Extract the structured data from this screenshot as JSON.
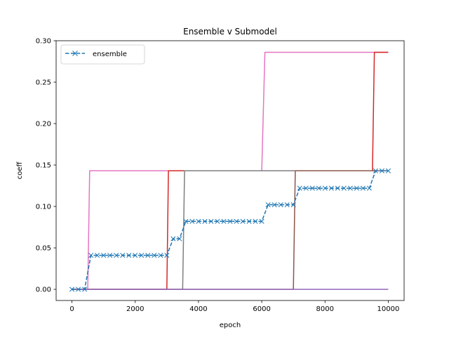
{
  "chart_data": {
    "type": "line",
    "title": "Ensemble v Submodel",
    "xlabel": "epoch",
    "ylabel": "coeff",
    "xlim": [
      -500,
      10500
    ],
    "ylim": [
      -0.0135,
      0.3
    ],
    "xticks": [
      0,
      2000,
      4000,
      6000,
      8000,
      10000
    ],
    "xtick_labels": [
      "0",
      "2000",
      "4000",
      "6000",
      "8000",
      "10000"
    ],
    "yticks": [
      0.0,
      0.05,
      0.1,
      0.15,
      0.2,
      0.25,
      0.3
    ],
    "ytick_labels": [
      "0.00",
      "0.05",
      "0.10",
      "0.15",
      "0.20",
      "0.25",
      "0.30"
    ],
    "grid": false,
    "legend": {
      "position": "top-left",
      "entries": [
        "ensemble"
      ]
    },
    "series": [
      {
        "name": "ensemble",
        "color": "#1f77b4",
        "style": "dashed",
        "marker": "x",
        "x": [
          0,
          200,
          400,
          600,
          800,
          1000,
          1200,
          1400,
          1600,
          1800,
          2000,
          2200,
          2400,
          2600,
          2800,
          3000,
          3200,
          3400,
          3600,
          3800,
          4000,
          4200,
          4400,
          4600,
          4800,
          5000,
          5200,
          5400,
          5600,
          5800,
          6000,
          6200,
          6400,
          6600,
          6800,
          7000,
          7200,
          7400,
          7600,
          7800,
          8000,
          8200,
          8400,
          8600,
          8800,
          9000,
          9200,
          9400,
          9600,
          9800,
          10000
        ],
        "y": [
          0,
          0,
          0,
          0.041,
          0.041,
          0.041,
          0.041,
          0.041,
          0.041,
          0.041,
          0.041,
          0.041,
          0.041,
          0.041,
          0.041,
          0.041,
          0.061,
          0.061,
          0.082,
          0.082,
          0.082,
          0.082,
          0.082,
          0.082,
          0.082,
          0.082,
          0.082,
          0.082,
          0.082,
          0.082,
          0.082,
          0.102,
          0.102,
          0.102,
          0.102,
          0.102,
          0.122,
          0.122,
          0.122,
          0.122,
          0.122,
          0.122,
          0.122,
          0.122,
          0.122,
          0.122,
          0.122,
          0.122,
          0.143,
          0.143,
          0.143
        ]
      },
      {
        "color": "#e377c2",
        "x": [
          0,
          500,
          560,
          6000,
          6100,
          10000
        ],
        "y": [
          0,
          0,
          0.143,
          0.143,
          0.286,
          0.286
        ]
      },
      {
        "color": "#d62728",
        "x": [
          0,
          3000,
          3050,
          9500,
          9560,
          10000
        ],
        "y": [
          0,
          0,
          0.143,
          0.143,
          0.286,
          0.286
        ]
      },
      {
        "color": "#7f7f7f",
        "x": [
          0,
          3500,
          3560,
          10000
        ],
        "y": [
          0,
          0,
          0.143,
          0.143
        ]
      },
      {
        "color": "#8c564b",
        "x": [
          0,
          7000,
          7060,
          10000
        ],
        "y": [
          0,
          0,
          0.143,
          0.143
        ]
      },
      {
        "color": "#9467bd",
        "x": [
          0,
          10000
        ],
        "y": [
          0,
          0
        ]
      }
    ]
  }
}
